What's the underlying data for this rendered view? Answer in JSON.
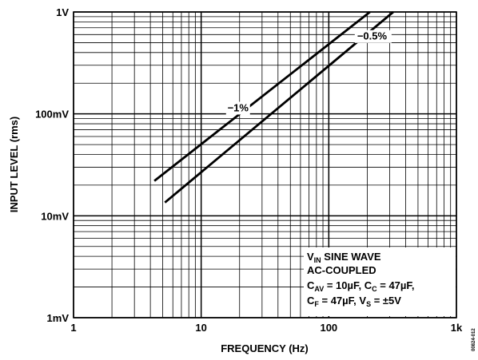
{
  "chart_data": {
    "type": "line",
    "xscale": "log",
    "yscale": "log",
    "xlim": [
      1,
      1000
    ],
    "ylim": [
      0.001,
      1
    ],
    "grid": true,
    "xlabel": "FREQUENCY (Hz)",
    "ylabel": "INPUT LEVEL (rms)",
    "x_ticks": [
      {
        "value": 1,
        "label": "1"
      },
      {
        "value": 10,
        "label": "10"
      },
      {
        "value": 100,
        "label": "100"
      },
      {
        "value": 1000,
        "label": "1k"
      }
    ],
    "y_ticks": [
      {
        "value": 0.001,
        "label": "1mV"
      },
      {
        "value": 0.01,
        "label": "10mV"
      },
      {
        "value": 0.1,
        "label": "100mV"
      },
      {
        "value": 1,
        "label": "1V"
      }
    ],
    "series": [
      {
        "name": "−1%",
        "x": [
          4.3,
          210
        ],
        "y": [
          0.022,
          1.0
        ]
      },
      {
        "name": "−0.5%",
        "x": [
          5.2,
          320
        ],
        "y": [
          0.0135,
          1.0
        ]
      }
    ],
    "annotation_lines": [
      {
        "main": "V",
        "sub": "IN",
        "tail": " SINE WAVE"
      },
      {
        "main": "AC-COUPLED",
        "sub": "",
        "tail": ""
      }
    ],
    "annotation_conditions": [
      [
        {
          "t": "C"
        },
        {
          "t": "AV",
          "sub": true
        },
        {
          "t": " = 10µF, C"
        },
        {
          "t": "C",
          "sub": true
        },
        {
          "t": " = 47µF,"
        }
      ],
      [
        {
          "t": "C"
        },
        {
          "t": "F",
          "sub": true
        },
        {
          "t": " = 47µF, V"
        },
        {
          "t": "S",
          "sub": true
        },
        {
          "t": " = ±5V"
        }
      ]
    ],
    "figure_id": "00824-012"
  }
}
